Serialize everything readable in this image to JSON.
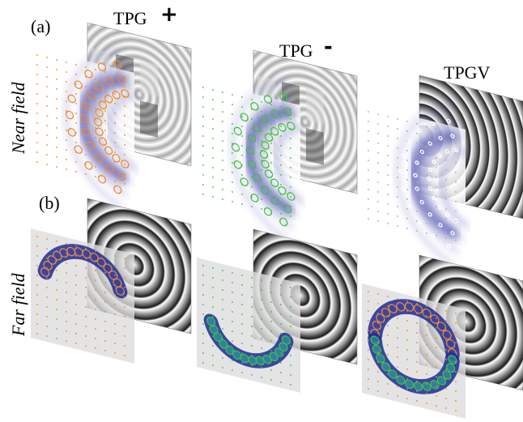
{
  "labels": {
    "panel_a": "(a)",
    "panel_b": "(b)"
  },
  "columns": [
    {
      "title": "TPG",
      "sign": "+"
    },
    {
      "title": "TPG",
      "sign": "-"
    },
    {
      "title": "TPGV"
    }
  ],
  "rows": [
    {
      "label": "Near field"
    },
    {
      "label": "Far field"
    }
  ]
}
